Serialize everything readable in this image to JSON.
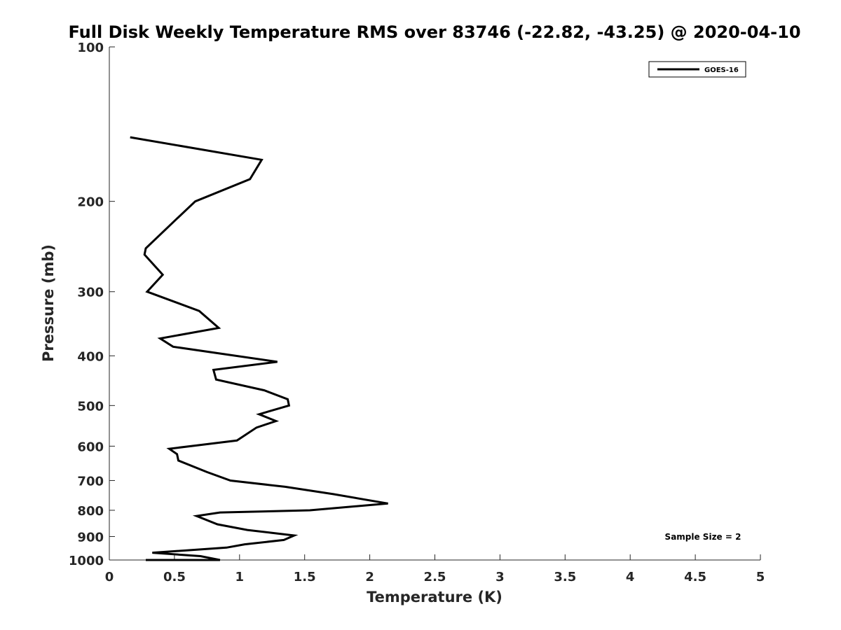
{
  "chart_data": {
    "type": "line",
    "title": "Full Disk Weekly Temperature RMS over 83746 (-22.82, -43.25) @ 2020-04-10",
    "xlabel": "Temperature (K)",
    "ylabel": "Pressure (mb)",
    "xlim": [
      0,
      5
    ],
    "ylim": [
      100,
      1000
    ],
    "yscale": "log",
    "y_reversed": true,
    "grid": false,
    "legend_position": "top-right",
    "x_ticks": [
      "0",
      "0.5",
      "1",
      "1.5",
      "2",
      "2.5",
      "3",
      "3.5",
      "4",
      "4.5",
      "5"
    ],
    "y_ticks": [
      "100",
      "200",
      "300",
      "400",
      "500",
      "600",
      "700",
      "800",
      "900",
      "1000"
    ],
    "series": [
      {
        "name": "GOES-16",
        "color": "#000000",
        "x": [
          0.16,
          1.17,
          1.08,
          0.66,
          0.52,
          0.28,
          0.27,
          0.41,
          0.29,
          0.69,
          0.84,
          0.39,
          0.49,
          1.29,
          0.8,
          0.82,
          1.19,
          1.37,
          1.38,
          1.15,
          1.28,
          1.13,
          0.98,
          0.46,
          0.52,
          0.53,
          0.75,
          0.93,
          1.35,
          1.72,
          2.14,
          1.54,
          0.85,
          0.67,
          0.83,
          1.06,
          1.42,
          1.34,
          1.04,
          0.9,
          0.33,
          0.7,
          0.85,
          0.28
        ],
        "y": [
          150,
          166,
          181,
          200,
          216,
          247,
          254,
          278,
          300,
          327,
          353,
          370,
          384,
          411,
          426,
          445,
          467,
          486,
          500,
          520,
          536,
          552,
          585,
          607,
          622,
          640,
          674,
          700,
          720,
          744,
          776,
          800,
          808,
          821,
          852,
          874,
          896,
          914,
          932,
          946,
          968,
          983,
          1000,
          1010
        ]
      }
    ],
    "annotation": "Sample Size = 2"
  }
}
